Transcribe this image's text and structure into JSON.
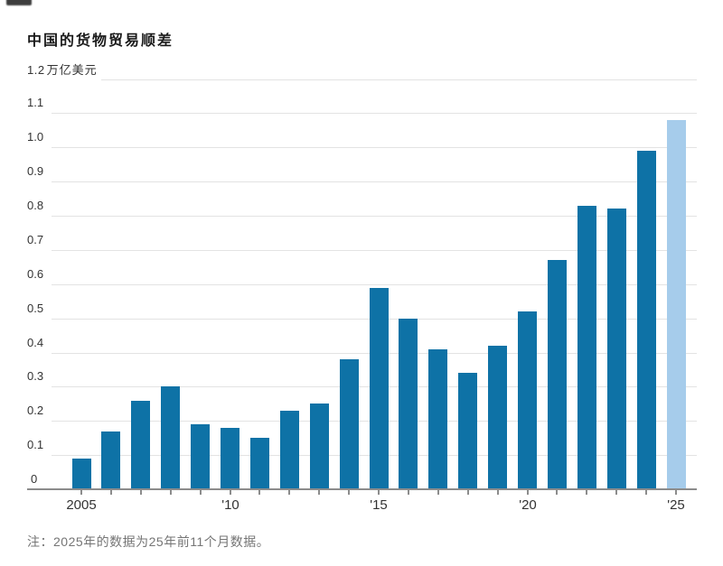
{
  "page": {
    "title": "中国的货物贸易顺差",
    "footnote": "注：2025年的数据为25年前11个月数据。"
  },
  "chart_data": {
    "type": "bar",
    "title": "中国的货物贸易顺差",
    "unit_label": "万亿美元",
    "categories": [
      "2005",
      "2006",
      "2007",
      "2008",
      "2009",
      "2010",
      "2011",
      "2012",
      "2013",
      "2014",
      "2015",
      "2016",
      "2017",
      "2018",
      "2019",
      "2020",
      "2021",
      "2022",
      "2023",
      "2024",
      "2025"
    ],
    "values": [
      0.09,
      0.17,
      0.26,
      0.3,
      0.19,
      0.18,
      0.15,
      0.23,
      0.25,
      0.38,
      0.59,
      0.5,
      0.41,
      0.34,
      0.42,
      0.52,
      0.67,
      0.83,
      0.82,
      0.99,
      1.08
    ],
    "highlighted_category": "2025",
    "ylim": [
      0,
      1.2
    ],
    "y_ticks": [
      0,
      0.1,
      0.2,
      0.3,
      0.4,
      0.5,
      0.6,
      0.7,
      0.8,
      0.9,
      1.0,
      1.1,
      1.2
    ],
    "y_tick_labels": [
      "0",
      "0.1",
      "0.2",
      "0.3",
      "0.4",
      "0.5",
      "0.6",
      "0.7",
      "0.8",
      "0.9",
      "1.0",
      "1.1",
      "1.2"
    ],
    "x_tick_labels": [
      {
        "index": 0,
        "label": "2005"
      },
      {
        "index": 5,
        "label": "'10"
      },
      {
        "index": 10,
        "label": "'15"
      },
      {
        "index": 15,
        "label": "'20"
      },
      {
        "index": 20,
        "label": "'25"
      }
    ],
    "grid": true,
    "legend": "none",
    "colors": {
      "bar": "#0e72a6",
      "bar_highlight": "#a6cceb",
      "grid_line": "#e3e3e3",
      "axis_line": "#8c8c8c",
      "title_text": "#1a1a1a",
      "tick_text": "#333333",
      "footnote_text": "#757575"
    }
  }
}
